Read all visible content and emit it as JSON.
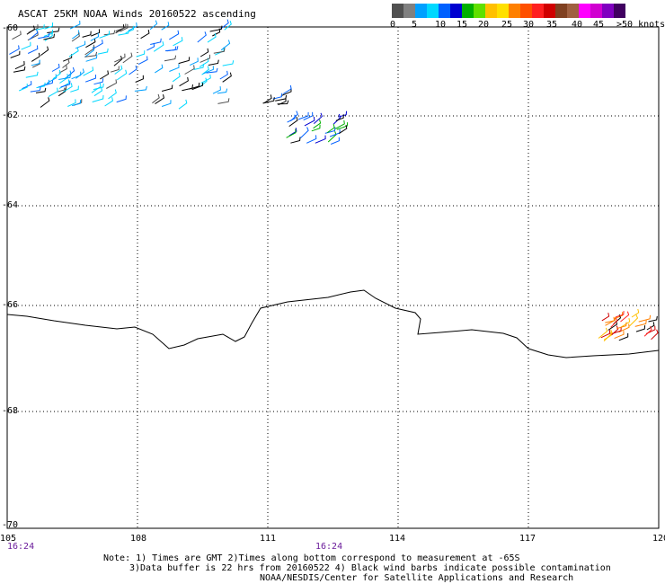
{
  "title": "ASCAT 25KM NOAA Winds 20160522 ascending",
  "legend": {
    "colors": [
      "#505050",
      "#808080",
      "#00a0ff",
      "#00d8ff",
      "#0060ff",
      "#0000d0",
      "#00b000",
      "#60e000",
      "#ffc000",
      "#ffe000",
      "#ff8000",
      "#ff5000",
      "#ff2020",
      "#d00000",
      "#804020",
      "#a06040",
      "#ff00ff",
      "#d000d0",
      "#8000c0",
      "#400060"
    ],
    "labels": [
      "0",
      "5",
      "10",
      "15",
      "20",
      "25",
      "30",
      "35",
      "40",
      "45",
      ">50 knots"
    ]
  },
  "map": {
    "lon_ticks": [
      "105",
      "108",
      "111",
      "114",
      "117",
      "120"
    ],
    "lat_ticks": [
      "-60",
      "-62",
      "-64",
      "-66",
      "-68",
      "-70"
    ],
    "time_labels": [
      "16:24",
      "16:24"
    ]
  },
  "notes": [
    "Note: 1) Times are GMT 2)Times along bottom correspond to measurement at -65S",
    "3)Data buffer is 22 hrs from 20160522 4) Black wind barbs indicate possible contamination",
    "NOAA/NESDIS/Center for Satellite Applications and Research"
  ]
}
